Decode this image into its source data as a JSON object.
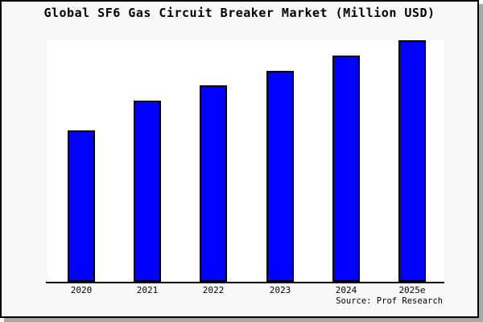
{
  "chart_data": {
    "type": "bar",
    "title": "Global SF6 Gas Circuit Breaker Market (Million USD)",
    "categories": [
      "2020",
      "2021",
      "2022",
      "2023",
      "2024",
      "2025e"
    ],
    "values": [
      188,
      225,
      244,
      262,
      281,
      300
    ],
    "value_note": "No y-axis or data labels shown in source; values are relative bar heights (px) read from the chart",
    "ylim": [
      0,
      300
    ],
    "grid": false,
    "legend": false,
    "y_axis_visible": false,
    "source_note": "Source: Prof Research"
  },
  "colors": {
    "bar_fill": "#0000ff",
    "bar_border": "#000000",
    "plot_bg": "#ffffff",
    "frame_bg": "#f8f8f8",
    "frame_border": "#000000",
    "shadow": "#a8a8a8",
    "text": "#000000"
  }
}
